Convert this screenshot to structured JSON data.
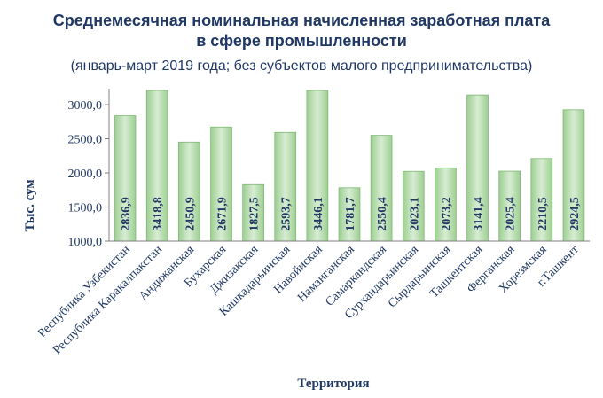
{
  "chart_data": {
    "type": "bar",
    "title_line1": "Среднемесячная номинальная начисленная заработная плата",
    "title_line2": "в сфере промышленности",
    "subtitle": "(январь-март 2019 года; без субъектов малого предпринимательства)",
    "xlabel": "Территория",
    "ylabel": "Тыс. сум",
    "ylim": [
      1000,
      3000
    ],
    "yticks": [
      1000,
      1500,
      2000,
      2500,
      3000
    ],
    "ytick_labels": [
      "1000,0",
      "1500,0",
      "2000,0",
      "2500,0",
      "3000,0"
    ],
    "grid": false,
    "categories": [
      "Республика Узбекистан",
      "Республика Каракалпакстан",
      "Андижанская",
      "Бухарская",
      "Джизакская",
      "Кашкадарьинская",
      "Навойиская",
      "Наманганская",
      "Самаркандская",
      "Сурхандарьинская",
      "Сырдарьинская",
      "Ташкентская",
      "Ферганская",
      "Хорезмская",
      "г.Ташкент"
    ],
    "values": [
      2836.9,
      3418.8,
      2450.9,
      2671.9,
      1827.5,
      2593.7,
      3446.1,
      1781.7,
      2550.4,
      2023.1,
      2073.2,
      3141.4,
      2025.4,
      2210.5,
      2924.5
    ],
    "value_labels": [
      "2836,9",
      "3418,8",
      "2450,9",
      "2671,9",
      "1827,5",
      "2593,7",
      "3446,1",
      "1781,7",
      "2550,4",
      "2023,1",
      "2073,2",
      "3141,4",
      "2025,4",
      "2210,5",
      "2924,5"
    ],
    "colors": {
      "bar_top": "#d7ecd2",
      "bar_bottom": "#9dcf92",
      "bar_stroke": "#7fb873",
      "title": "#1f3864",
      "label": "#1f3864"
    }
  }
}
